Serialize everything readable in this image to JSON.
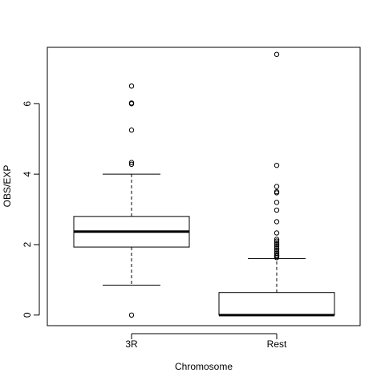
{
  "chart_data": {
    "type": "box",
    "title": "",
    "xlabel": "Chromosome",
    "ylabel": "OBS/EXP",
    "ylim": [
      -0.3,
      7.6
    ],
    "yticks": [
      0,
      2,
      4,
      6
    ],
    "grid": false,
    "categories": [
      "3R",
      "Rest"
    ],
    "boxes": [
      {
        "category": "3R",
        "whisker_low": 0.85,
        "q1": 1.93,
        "median": 2.37,
        "q3": 2.8,
        "whisker_high": 4.0,
        "outliers": [
          0.0,
          4.28,
          4.33,
          5.25,
          6.0,
          6.02,
          6.5
        ]
      },
      {
        "category": "Rest",
        "whisker_low": 0.0,
        "q1": 0.0,
        "median": 0.0,
        "q3": 0.64,
        "whisker_high": 1.6,
        "outliers": [
          1.63,
          1.67,
          1.7,
          1.75,
          1.8,
          1.85,
          1.9,
          1.95,
          2.0,
          2.05,
          2.1,
          2.15,
          2.33,
          2.65,
          2.98,
          3.2,
          3.47,
          3.5,
          3.65,
          4.25,
          7.4
        ]
      }
    ]
  }
}
